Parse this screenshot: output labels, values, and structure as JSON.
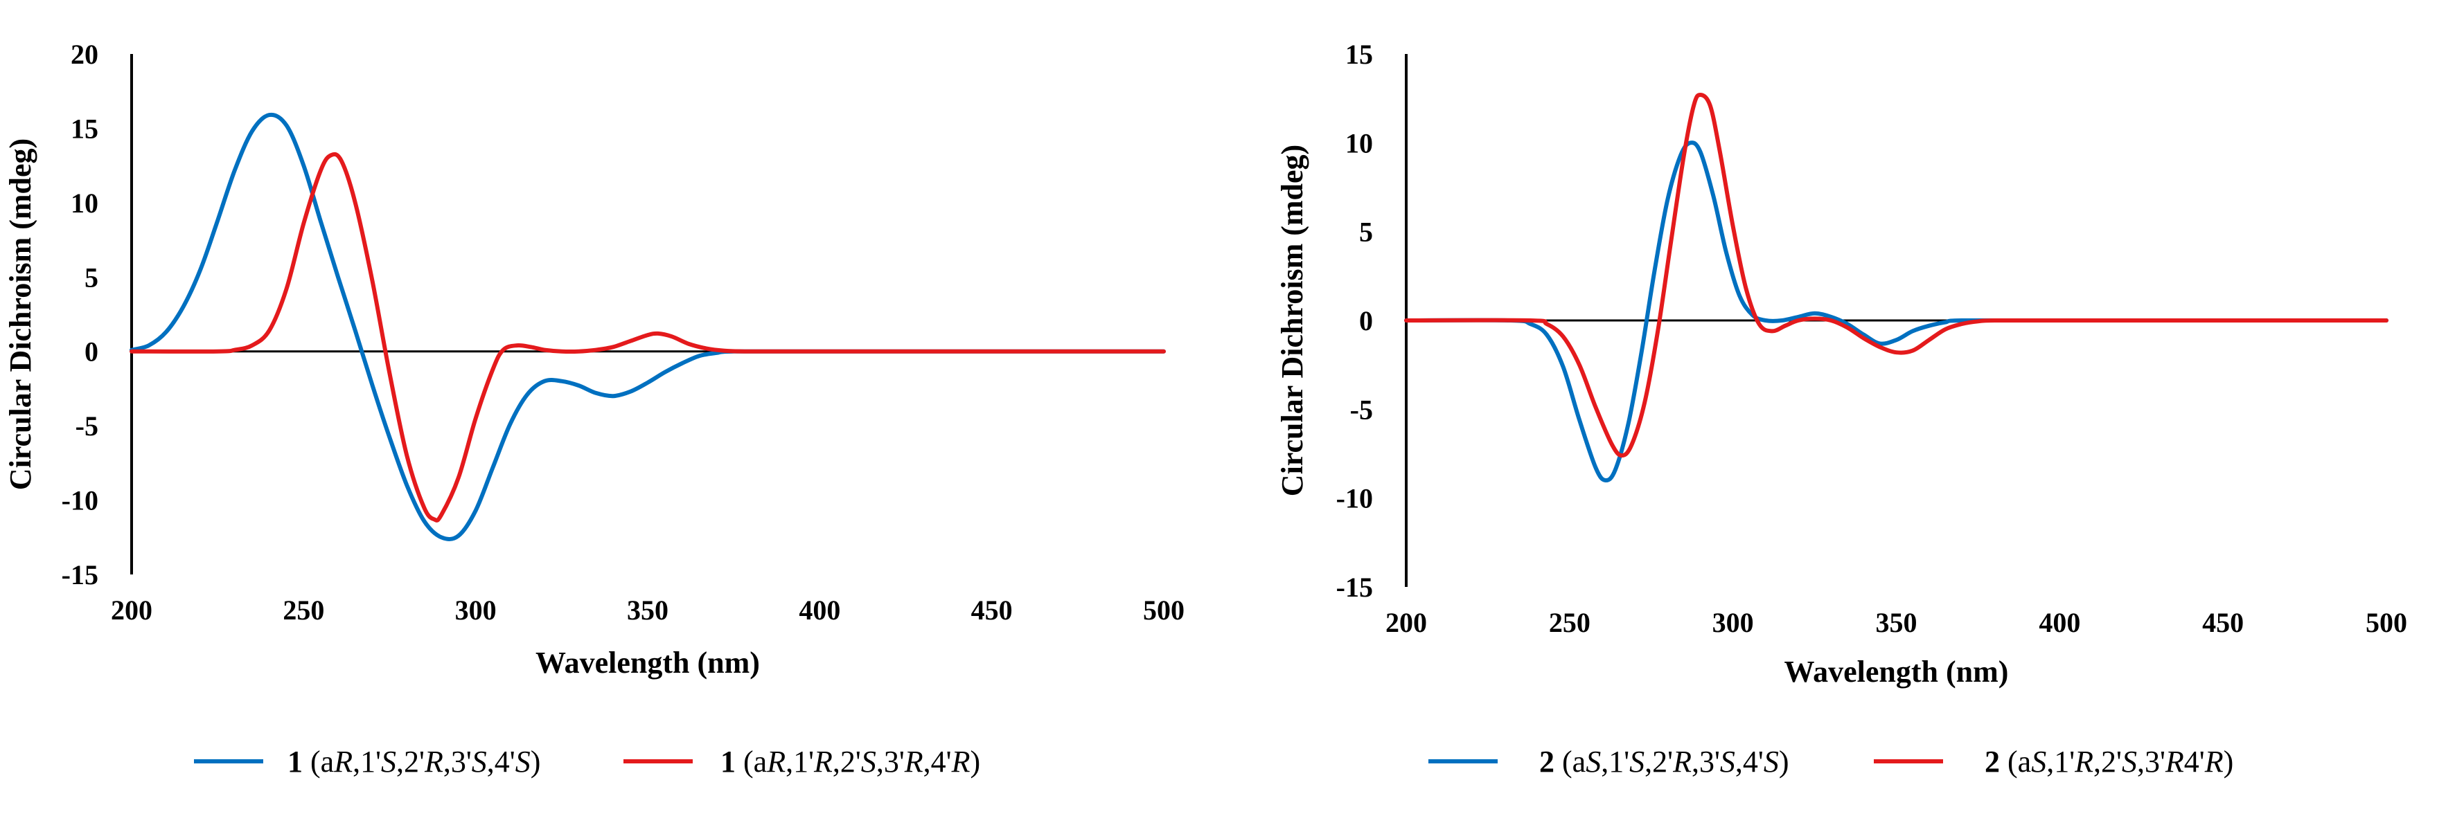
{
  "chart_data": [
    {
      "type": "line",
      "title": "",
      "xlabel": "Wavelength (nm)",
      "ylabel": "Circular  Dichroism (mdeg)",
      "xlim": [
        200,
        500
      ],
      "ylim": [
        -15,
        20
      ],
      "x_ticks": [
        "200",
        "250",
        "300",
        "350",
        "400",
        "450",
        "500"
      ],
      "y_ticks": [
        "20",
        "15",
        "10",
        "5",
        "0",
        "-5",
        "-10",
        "-15"
      ],
      "legend_position": "bottom",
      "series": [
        {
          "name": "1 (aR,1'S,2'R,3'S,4'S)",
          "legend_parts": [
            {
              "t": "1",
              "s": "b"
            },
            {
              "t": " (a",
              "s": ""
            },
            {
              "t": "R",
              "s": "i"
            },
            {
              "t": ",1'",
              "s": ""
            },
            {
              "t": "S",
              "s": "i"
            },
            {
              "t": ",2'",
              "s": ""
            },
            {
              "t": "R",
              "s": "i"
            },
            {
              "t": ",3'",
              "s": ""
            },
            {
              "t": "S",
              "s": "i"
            },
            {
              "t": ",4'",
              "s": ""
            },
            {
              "t": "S",
              "s": "i"
            },
            {
              "t": ")",
              "s": ""
            }
          ],
          "color": "#0070C0",
          "points": [
            [
              200,
              0.1
            ],
            [
              205,
              0.4
            ],
            [
              210,
              1.3
            ],
            [
              215,
              3
            ],
            [
              220,
              5.5
            ],
            [
              225,
              8.8
            ],
            [
              230,
              12.2
            ],
            [
              235,
              14.8
            ],
            [
              240,
              15.9
            ],
            [
              245,
              15.2
            ],
            [
              250,
              12.5
            ],
            [
              255,
              8.7
            ],
            [
              260,
              5
            ],
            [
              265,
              1.4
            ],
            [
              270,
              -2.3
            ],
            [
              275,
              -5.8
            ],
            [
              280,
              -9
            ],
            [
              285,
              -11.4
            ],
            [
              290,
              -12.5
            ],
            [
              295,
              -12.4
            ],
            [
              300,
              -10.7
            ],
            [
              305,
              -7.8
            ],
            [
              310,
              -4.9
            ],
            [
              315,
              -2.9
            ],
            [
              320,
              -2
            ],
            [
              325,
              -2
            ],
            [
              330,
              -2.3
            ],
            [
              335,
              -2.8
            ],
            [
              340,
              -3
            ],
            [
              345,
              -2.7
            ],
            [
              350,
              -2.1
            ],
            [
              355,
              -1.4
            ],
            [
              360,
              -0.8
            ],
            [
              365,
              -0.3
            ],
            [
              370,
              -0.1
            ],
            [
              375,
              0
            ],
            [
              400,
              0
            ],
            [
              450,
              0
            ],
            [
              500,
              0
            ]
          ]
        },
        {
          "name": "1 (aR,1'R,2'S,3'R,4'R)",
          "legend_parts": [
            {
              "t": "1",
              "s": "b"
            },
            {
              "t": " (a",
              "s": ""
            },
            {
              "t": "R",
              "s": "i"
            },
            {
              "t": ",1'",
              "s": ""
            },
            {
              "t": "R",
              "s": "i"
            },
            {
              "t": ",2'",
              "s": ""
            },
            {
              "t": "S",
              "s": "i"
            },
            {
              "t": ",3'",
              "s": ""
            },
            {
              "t": "R",
              "s": "i"
            },
            {
              "t": ",4'",
              "s": ""
            },
            {
              "t": "R",
              "s": "i"
            },
            {
              "t": ")",
              "s": ""
            }
          ],
          "color": "#E41A1C",
          "points": [
            [
              200,
              0
            ],
            [
              225,
              0
            ],
            [
              230,
              0.1
            ],
            [
              235,
              0.4
            ],
            [
              240,
              1.4
            ],
            [
              245,
              4.2
            ],
            [
              250,
              8.6
            ],
            [
              255,
              12.2
            ],
            [
              258,
              13.2
            ],
            [
              261,
              12.8
            ],
            [
              265,
              10
            ],
            [
              270,
              4.7
            ],
            [
              275,
              -1.5
            ],
            [
              280,
              -7
            ],
            [
              285,
              -10.5
            ],
            [
              288,
              -11.3
            ],
            [
              290,
              -11
            ],
            [
              295,
              -8.5
            ],
            [
              300,
              -4.5
            ],
            [
              305,
              -1.2
            ],
            [
              308,
              0.1
            ],
            [
              312,
              0.4
            ],
            [
              316,
              0.3
            ],
            [
              320,
              0.1
            ],
            [
              325,
              0
            ],
            [
              330,
              0
            ],
            [
              335,
              0.1
            ],
            [
              340,
              0.3
            ],
            [
              345,
              0.7
            ],
            [
              350,
              1.1
            ],
            [
              353,
              1.2
            ],
            [
              357,
              1
            ],
            [
              362,
              0.5
            ],
            [
              367,
              0.2
            ],
            [
              372,
              0.05
            ],
            [
              378,
              0
            ],
            [
              400,
              0
            ],
            [
              450,
              0
            ],
            [
              500,
              0
            ]
          ]
        }
      ]
    },
    {
      "type": "line",
      "title": "",
      "xlabel": "Wavelength (nm)",
      "ylabel": "Circular  Dichroism (mdeg)",
      "xlim": [
        200,
        500
      ],
      "ylim": [
        -15,
        15
      ],
      "x_ticks": [
        "200",
        "250",
        "300",
        "350",
        "400",
        "450",
        "500"
      ],
      "y_ticks": [
        "15",
        "10",
        "5",
        "0",
        "-5",
        "-10",
        "-15"
      ],
      "legend_position": "bottom",
      "series": [
        {
          "name": "2 (aS,1'S,2'R,3'S,4'S)",
          "legend_parts": [
            {
              "t": "2",
              "s": "b"
            },
            {
              "t": " (a",
              "s": ""
            },
            {
              "t": "S",
              "s": "i"
            },
            {
              "t": ",1'",
              "s": ""
            },
            {
              "t": "S",
              "s": "i"
            },
            {
              "t": ",2'",
              "s": ""
            },
            {
              "t": "R",
              "s": "i"
            },
            {
              "t": ",3'",
              "s": ""
            },
            {
              "t": "S",
              "s": "i"
            },
            {
              "t": ",4'",
              "s": ""
            },
            {
              "t": "S",
              "s": "i"
            },
            {
              "t": ")",
              "s": ""
            }
          ],
          "color": "#0070C0",
          "points": [
            [
              200,
              0
            ],
            [
              232,
              0
            ],
            [
              238,
              -0.2
            ],
            [
              243,
              -0.8
            ],
            [
              248,
              -2.6
            ],
            [
              253,
              -5.6
            ],
            [
              258,
              -8.3
            ],
            [
              261,
              -9
            ],
            [
              264,
              -8.4
            ],
            [
              268,
              -5.8
            ],
            [
              272,
              -1.8
            ],
            [
              276,
              2.8
            ],
            [
              280,
              6.8
            ],
            [
              284,
              9.3
            ],
            [
              287,
              10
            ],
            [
              290,
              9.5
            ],
            [
              294,
              7
            ],
            [
              298,
              3.8
            ],
            [
              302,
              1.4
            ],
            [
              306,
              0.3
            ],
            [
              310,
              0
            ],
            [
              315,
              0
            ],
            [
              320,
              0.2
            ],
            [
              325,
              0.4
            ],
            [
              330,
              0.2
            ],
            [
              335,
              -0.2
            ],
            [
              340,
              -0.8
            ],
            [
              345,
              -1.3
            ],
            [
              350,
              -1.1
            ],
            [
              355,
              -0.6
            ],
            [
              360,
              -0.3
            ],
            [
              365,
              -0.1
            ],
            [
              370,
              0
            ],
            [
              400,
              0
            ],
            [
              450,
              0
            ],
            [
              500,
              0
            ]
          ]
        },
        {
          "name": "2 (aS,1'R,2'S,3'R4'R)",
          "legend_parts": [
            {
              "t": "2",
              "s": "b"
            },
            {
              "t": " (a",
              "s": ""
            },
            {
              "t": "S",
              "s": "i"
            },
            {
              "t": ",1'",
              "s": ""
            },
            {
              "t": "R",
              "s": "i"
            },
            {
              "t": ",2'",
              "s": ""
            },
            {
              "t": "S",
              "s": "i"
            },
            {
              "t": ",3'",
              "s": ""
            },
            {
              "t": "R",
              "s": "i"
            },
            {
              "t": "4'",
              "s": ""
            },
            {
              "t": "R",
              "s": "i"
            },
            {
              "t": ")",
              "s": ""
            }
          ],
          "color": "#E41A1C",
          "points": [
            [
              200,
              0
            ],
            [
              238,
              0
            ],
            [
              243,
              -0.2
            ],
            [
              248,
              -0.9
            ],
            [
              253,
              -2.5
            ],
            [
              258,
              -4.9
            ],
            [
              263,
              -7
            ],
            [
              266,
              -7.6
            ],
            [
              269,
              -7
            ],
            [
              273,
              -4.6
            ],
            [
              277,
              -0.6
            ],
            [
              281,
              4.4
            ],
            [
              285,
              9.3
            ],
            [
              288,
              12.1
            ],
            [
              290,
              12.7
            ],
            [
              293,
              12.1
            ],
            [
              296,
              9.5
            ],
            [
              300,
              5.3
            ],
            [
              304,
              1.8
            ],
            [
              308,
              -0.2
            ],
            [
              312,
              -0.6
            ],
            [
              316,
              -0.3
            ],
            [
              320,
              0
            ],
            [
              325,
              0.1
            ],
            [
              330,
              0
            ],
            [
              335,
              -0.4
            ],
            [
              340,
              -1
            ],
            [
              345,
              -1.5
            ],
            [
              350,
              -1.8
            ],
            [
              355,
              -1.7
            ],
            [
              360,
              -1.1
            ],
            [
              365,
              -0.5
            ],
            [
              370,
              -0.2
            ],
            [
              375,
              -0.05
            ],
            [
              380,
              0
            ],
            [
              400,
              0
            ],
            [
              450,
              0
            ],
            [
              500,
              0
            ]
          ]
        }
      ]
    }
  ]
}
